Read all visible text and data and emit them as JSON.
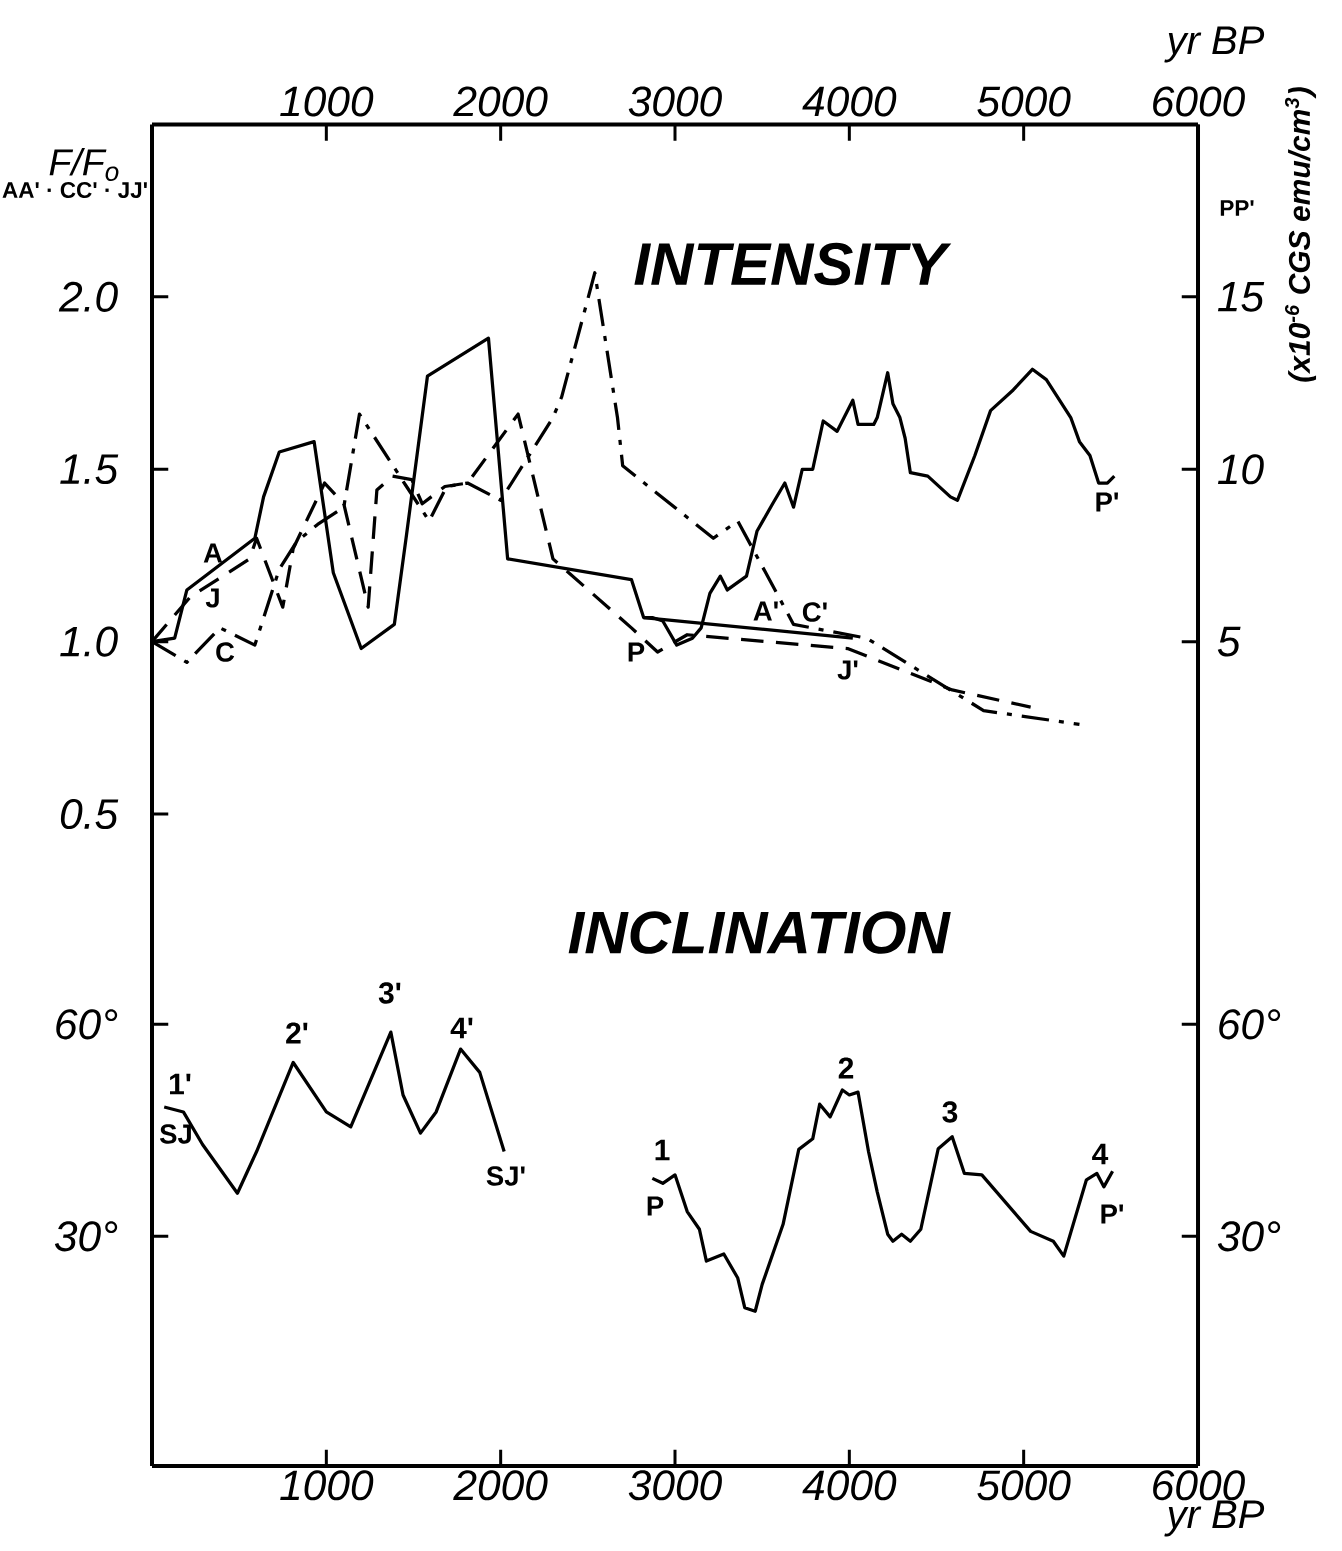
{
  "chart_data": [
    {
      "type": "line",
      "title": "INTENSITY",
      "xlabel": "yr BP",
      "ylabel": "F/F$_{o}$",
      "y2label": "(x10$^{-6}$ CGS emu/cm$^{3}$)",
      "xlim": [
        0,
        6000
      ],
      "xticks": [
        1000,
        2000,
        3000,
        4000,
        5000,
        6000
      ],
      "ylim": [
        0.3,
        2.5
      ],
      "yticks": [
        {
          "value": 0.5,
          "label": "0.5"
        },
        {
          "value": 1.0,
          "label": "1.0"
        },
        {
          "value": 1.5,
          "label": "1.5"
        },
        {
          "value": 2.0,
          "label": "2.0"
        }
      ],
      "y2lim": [
        -2,
        20
      ],
      "y2ticks": [
        5,
        10,
        15
      ],
      "series": [
        {
          "color": "#000000",
          "line_style": "solid",
          "x": [
            0,
            130,
            200,
            590,
            640,
            730,
            930,
            1040,
            1200,
            1390,
            1460,
            1580,
            1930,
            2040,
            2750,
            2820,
            4020
          ],
          "values": [
            1.0,
            1.01,
            1.15,
            1.3,
            1.42,
            1.55,
            1.58,
            1.2,
            0.98,
            1.05,
            1.31,
            1.77,
            1.88,
            1.24,
            1.18,
            1.07,
            1.01
          ]
        },
        {
          "color": "#000000",
          "line_style": "dashed",
          "x": [
            0,
            220,
            560,
            600,
            750,
            810,
            990,
            1100,
            1240,
            1290,
            1380,
            1490,
            1550,
            1680,
            1810,
            2100,
            2300,
            2750,
            2900,
            3070,
            3990,
            4590,
            5040
          ],
          "values": [
            1.0,
            1.13,
            1.24,
            1.3,
            1.1,
            1.27,
            1.46,
            1.4,
            1.1,
            1.44,
            1.48,
            1.47,
            1.4,
            1.45,
            1.46,
            1.66,
            1.24,
            1.04,
            0.97,
            1.02,
            0.98,
            0.86,
            0.81
          ]
        },
        {
          "color": "#000000",
          "line_style": "dashdot",
          "x": [
            0,
            200,
            390,
            590,
            730,
            830,
            950,
            1100,
            1190,
            1460,
            1590,
            1690,
            1810,
            2000,
            2300,
            2350,
            2540,
            2670,
            2700,
            3220,
            3360,
            3680,
            4100,
            4770,
            5320
          ],
          "values": [
            1.0,
            0.94,
            1.04,
            0.99,
            1.21,
            1.29,
            1.34,
            1.39,
            1.66,
            1.45,
            1.35,
            1.45,
            1.46,
            1.41,
            1.65,
            1.71,
            2.07,
            1.65,
            1.51,
            1.3,
            1.35,
            1.05,
            1.01,
            0.8,
            0.76
          ]
        },
        {
          "color": "#000000",
          "line_style": "solid",
          "axis": "y2",
          "x": [
            2820,
            2870,
            2930,
            3010,
            3100,
            3150,
            3200,
            3260,
            3300,
            3410,
            3470,
            3560,
            3630,
            3680,
            3730,
            3790,
            3850,
            3930,
            4020,
            4050,
            4140,
            4160,
            4220,
            4250,
            4290,
            4320,
            4350,
            4450,
            4580,
            4620,
            4720,
            4810,
            4940,
            5050,
            5130,
            5270,
            5320,
            5380,
            5430,
            5480,
            5520
          ],
          "values": [
            5.7,
            5.7,
            5.6,
            4.9,
            5.1,
            5.4,
            6.4,
            6.9,
            6.5,
            6.9,
            8.2,
            9.0,
            9.6,
            8.9,
            10.0,
            10.0,
            11.4,
            11.1,
            12.0,
            11.3,
            11.3,
            11.5,
            12.8,
            11.9,
            11.5,
            10.9,
            9.9,
            9.8,
            9.2,
            9.1,
            10.4,
            11.7,
            12.3,
            12.9,
            12.6,
            11.5,
            10.8,
            10.4,
            9.6,
            9.6,
            9.8
          ]
        }
      ],
      "annotations": [
        "AA' · CC' · JJ'",
        "PP'",
        "A",
        "J",
        "C",
        "P",
        "A'",
        "C'",
        "J'",
        "P'"
      ]
    },
    {
      "type": "line",
      "title": "INCLINATION",
      "xlabel": "yr BP",
      "xlim": [
        0,
        6000
      ],
      "xticks": [
        1000,
        2000,
        3000,
        4000,
        5000,
        6000
      ],
      "ylim": [
        -2.5,
        80
      ],
      "yticks": [
        {
          "value": 30,
          "label": "30°"
        },
        {
          "value": 60,
          "label": "60°"
        }
      ],
      "y2lim": [
        -2.5,
        80
      ],
      "y2ticks": [
        {
          "value": 30,
          "label": "30°"
        },
        {
          "value": 60,
          "label": "60°"
        }
      ],
      "series": [
        {
          "color": "#000000",
          "line_style": "solid",
          "x": [
            70,
            180,
            290,
            490,
            600,
            810,
            1000,
            1140,
            1370,
            1440,
            1540,
            1630,
            1770,
            1880,
            2020
          ],
          "values": [
            48.3,
            47.6,
            43.0,
            36.1,
            42.0,
            54.6,
            47.6,
            45.5,
            58.9,
            50.0,
            44.6,
            47.6,
            56.5,
            53.2,
            42.0
          ]
        },
        {
          "color": "#000000",
          "line_style": "solid",
          "x": [
            2870,
            2930,
            3000,
            3070,
            3140,
            3180,
            3280,
            3360,
            3400,
            3460,
            3500,
            3620,
            3710,
            3790,
            3830,
            3890,
            3960,
            4000,
            4050,
            4110,
            4160,
            4220,
            4250,
            4300,
            4350,
            4410,
            4510,
            4590,
            4660,
            4760,
            5040,
            5170,
            5230,
            5360,
            5420,
            5460,
            5510
          ],
          "values": [
            38.2,
            37.5,
            38.7,
            33.5,
            31.0,
            26.5,
            27.5,
            24.1,
            19.9,
            19.4,
            23.2,
            31.7,
            42.3,
            43.8,
            48.7,
            46.9,
            50.7,
            50.0,
            50.4,
            42.0,
            36.3,
            30.3,
            29.3,
            30.3,
            29.3,
            31.0,
            42.4,
            44.1,
            38.9,
            38.7,
            30.7,
            29.3,
            27.2,
            38.0,
            38.9,
            37.0,
            39.2
          ]
        }
      ],
      "annotations": [
        "1'",
        "SJ",
        "2'",
        "3'",
        "4'",
        "SJ'",
        "1",
        "P",
        "2",
        "3",
        "4",
        "P'"
      ]
    }
  ]
}
